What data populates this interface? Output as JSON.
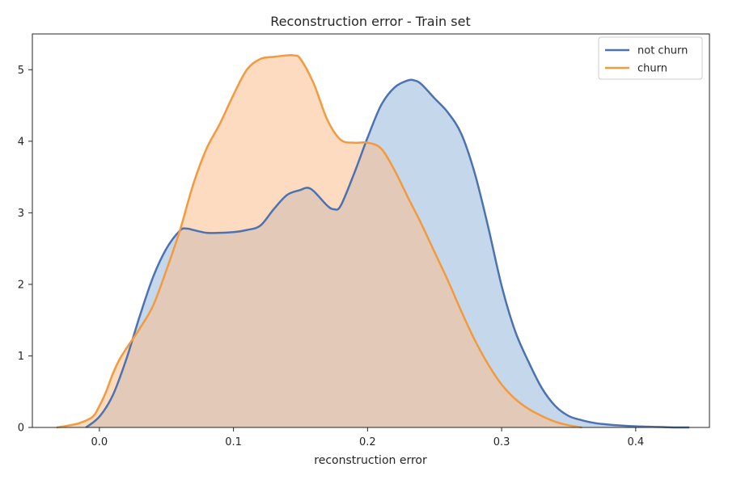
{
  "chart_data": {
    "type": "area",
    "title": "Reconstruction error - Train set",
    "xlabel": "reconstruction error",
    "ylabel": "",
    "xlim": [
      -0.05,
      0.455
    ],
    "ylim": [
      0,
      5.5
    ],
    "xticks": [
      0.0,
      0.1,
      0.2,
      0.3,
      0.4
    ],
    "xtick_labels": [
      "0.0",
      "0.1",
      "0.2",
      "0.3",
      "0.4"
    ],
    "yticks": [
      0,
      1,
      2,
      3,
      4,
      5
    ],
    "ytick_labels": [
      "0",
      "1",
      "2",
      "3",
      "4",
      "5"
    ],
    "grid": false,
    "legend_position": "top-right",
    "series": [
      {
        "name": "not churn",
        "color": "#4c72b0",
        "fill": "rgba(126,167,208,0.45)",
        "x": [
          -0.01,
          0.0,
          0.01,
          0.02,
          0.03,
          0.04,
          0.05,
          0.06,
          0.065,
          0.07,
          0.08,
          0.09,
          0.1,
          0.11,
          0.12,
          0.13,
          0.14,
          0.15,
          0.155,
          0.16,
          0.17,
          0.175,
          0.18,
          0.19,
          0.2,
          0.21,
          0.22,
          0.23,
          0.235,
          0.24,
          0.25,
          0.26,
          0.27,
          0.28,
          0.29,
          0.3,
          0.31,
          0.32,
          0.33,
          0.34,
          0.35,
          0.36,
          0.37,
          0.38,
          0.39,
          0.4,
          0.41,
          0.42,
          0.43,
          0.44
        ],
        "y": [
          0.0,
          0.15,
          0.45,
          0.95,
          1.55,
          2.1,
          2.5,
          2.75,
          2.78,
          2.76,
          2.72,
          2.72,
          2.73,
          2.76,
          2.82,
          3.05,
          3.25,
          3.32,
          3.35,
          3.3,
          3.1,
          3.05,
          3.1,
          3.55,
          4.05,
          4.5,
          4.75,
          4.85,
          4.85,
          4.8,
          4.6,
          4.4,
          4.1,
          3.55,
          2.8,
          1.98,
          1.35,
          0.92,
          0.55,
          0.3,
          0.16,
          0.1,
          0.06,
          0.04,
          0.025,
          0.015,
          0.01,
          0.005,
          0.0,
          0.0
        ]
      },
      {
        "name": "churn",
        "color": "#f39a3e",
        "fill": "rgba(252,190,140,0.55)",
        "x": [
          -0.032,
          -0.025,
          -0.015,
          -0.005,
          0.0,
          0.005,
          0.01,
          0.015,
          0.02,
          0.03,
          0.04,
          0.05,
          0.06,
          0.07,
          0.08,
          0.09,
          0.1,
          0.11,
          0.12,
          0.13,
          0.14,
          0.145,
          0.15,
          0.16,
          0.17,
          0.18,
          0.19,
          0.2,
          0.21,
          0.22,
          0.23,
          0.24,
          0.25,
          0.26,
          0.27,
          0.28,
          0.29,
          0.3,
          0.31,
          0.32,
          0.33,
          0.34,
          0.35,
          0.36
        ],
        "y": [
          0.0,
          0.02,
          0.06,
          0.15,
          0.3,
          0.5,
          0.75,
          0.95,
          1.1,
          1.38,
          1.7,
          2.2,
          2.75,
          3.4,
          3.9,
          4.25,
          4.65,
          5.0,
          5.15,
          5.18,
          5.2,
          5.2,
          5.15,
          4.8,
          4.3,
          4.02,
          3.98,
          3.98,
          3.9,
          3.6,
          3.22,
          2.85,
          2.45,
          2.05,
          1.62,
          1.22,
          0.88,
          0.6,
          0.4,
          0.26,
          0.16,
          0.08,
          0.03,
          0.0
        ]
      }
    ]
  }
}
